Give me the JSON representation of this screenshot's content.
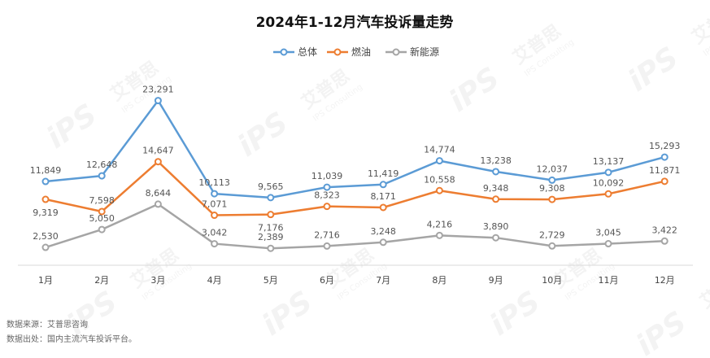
{
  "chart_data": {
    "type": "line",
    "title": "2024年1-12月汽车投诉量走势",
    "categories": [
      "1月",
      "2月",
      "3月",
      "4月",
      "5月",
      "6月",
      "7月",
      "8月",
      "9月",
      "10月",
      "11月",
      "12月"
    ],
    "series": [
      {
        "name": "总体",
        "color": "#5b9bd5",
        "values": [
          11849,
          12648,
          23291,
          10113,
          9565,
          11039,
          11419,
          14774,
          13238,
          12037,
          13137,
          15293
        ]
      },
      {
        "name": "燃油",
        "color": "#ed7d31",
        "values": [
          9319,
          7598,
          14647,
          7071,
          7176,
          8323,
          8171,
          10558,
          9348,
          9308,
          10092,
          11871
        ]
      },
      {
        "name": "新能源",
        "color": "#a5a5a5",
        "values": [
          2530,
          5050,
          8644,
          3042,
          2389,
          2716,
          3248,
          4216,
          3890,
          2729,
          3045,
          3422
        ]
      }
    ],
    "ylim": [
      0,
      30000
    ],
    "grid": false,
    "legend_position": "top-center",
    "xlabel": "",
    "ylabel": ""
  },
  "footer": {
    "source": "数据来源：艾普思咨询",
    "origin": "数据出处：国内主流汽车投诉平台。"
  },
  "watermark": {
    "brand": "艾普思",
    "sub": "IPS Consulting",
    "logo": "iPS"
  }
}
